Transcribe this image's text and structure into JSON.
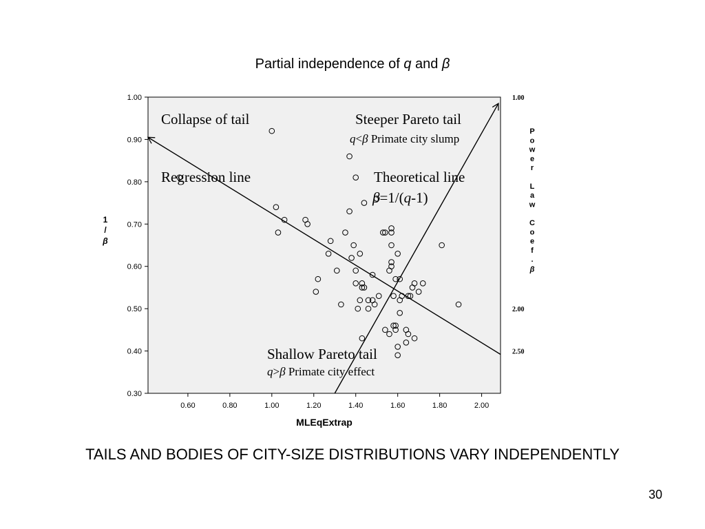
{
  "slide": {
    "title_prefix": "Partial independence of ",
    "title_q": "q",
    "title_and": " and ",
    "title_beta": "β",
    "caption": "TAILS AND BODIES OF CITY-SIZE DISTRIBUTIONS VARY INDEPENDENTLY",
    "page_number": "30"
  },
  "annotations": {
    "collapse_of_tail": "Collapse of tail",
    "regression_line": "Regression line",
    "steeper_pareto_tail": "Steeper Pareto tail",
    "steeper_sub_q": "q",
    "steeper_sub_lt": "<",
    "steeper_sub_beta": "β",
    "steeper_sub_text": " Primate city slump",
    "theoretical_line": "Theoretical line",
    "theoretical_eq_beta": "β",
    "theoretical_eq_mid": "=1/(",
    "theoretical_eq_q": "q",
    "theoretical_eq_end": "-1)",
    "shallow_pareto_tail": "Shallow Pareto tail",
    "shallow_sub_q": "q",
    "shallow_sub_gt": ">",
    "shallow_sub_beta": "β",
    "shallow_sub_text": " Primate city effect"
  },
  "right_axis": {
    "label_chars": [
      "P",
      "o",
      "w",
      "e",
      "r",
      "",
      "L",
      "a",
      "w",
      "",
      "C",
      "o",
      "e",
      "f",
      "."
    ],
    "label_beta": "β",
    "ticks": [
      {
        "label": "1.00",
        "y_value": 1.0
      },
      {
        "label": "2.00",
        "y_value": 0.5
      },
      {
        "label": "2.50",
        "y_value": 0.4
      }
    ]
  },
  "chart_data": {
    "type": "scatter",
    "xlabel": "MLEqExtrap",
    "ylabel_lines": [
      "1",
      "/",
      "β"
    ],
    "xlim": [
      0.41,
      2.09
    ],
    "ylim": [
      0.3,
      1.0
    ],
    "xticks": [
      {
        "value": 0.6,
        "label": "0.60"
      },
      {
        "value": 0.8,
        "label": "0.80"
      },
      {
        "value": 1.0,
        "label": "1.00"
      },
      {
        "value": 1.2,
        "label": "1.20"
      },
      {
        "value": 1.4,
        "label": "1.40"
      },
      {
        "value": 1.6,
        "label": "1.60"
      },
      {
        "value": 1.8,
        "label": "1.80"
      },
      {
        "value": 2.0,
        "label": "2.00"
      }
    ],
    "yticks": [
      {
        "value": 0.3,
        "label": "0.30"
      },
      {
        "value": 0.4,
        "label": "0.40"
      },
      {
        "value": 0.5,
        "label": "0.50"
      },
      {
        "value": 0.6,
        "label": "0.60"
      },
      {
        "value": 0.7,
        "label": "0.70"
      },
      {
        "value": 0.8,
        "label": "0.80"
      },
      {
        "value": 0.9,
        "label": "0.90"
      },
      {
        "value": 1.0,
        "label": "1.00"
      }
    ],
    "grid": false,
    "points": [
      [
        0.56,
        0.81
      ],
      [
        1.0,
        0.92
      ],
      [
        1.02,
        0.74
      ],
      [
        1.03,
        0.68
      ],
      [
        1.06,
        0.71
      ],
      [
        1.16,
        0.71
      ],
      [
        1.17,
        0.7
      ],
      [
        1.21,
        0.54
      ],
      [
        1.22,
        0.57
      ],
      [
        1.27,
        0.63
      ],
      [
        1.28,
        0.66
      ],
      [
        1.31,
        0.59
      ],
      [
        1.33,
        0.51
      ],
      [
        1.35,
        0.68
      ],
      [
        1.37,
        0.86
      ],
      [
        1.37,
        0.73
      ],
      [
        1.38,
        0.62
      ],
      [
        1.39,
        0.65
      ],
      [
        1.4,
        0.81
      ],
      [
        1.4,
        0.59
      ],
      [
        1.4,
        0.56
      ],
      [
        1.41,
        0.5
      ],
      [
        1.42,
        0.63
      ],
      [
        1.42,
        0.52
      ],
      [
        1.43,
        0.56
      ],
      [
        1.43,
        0.55
      ],
      [
        1.43,
        0.43
      ],
      [
        1.44,
        0.75
      ],
      [
        1.44,
        0.55
      ],
      [
        1.46,
        0.52
      ],
      [
        1.46,
        0.5
      ],
      [
        1.48,
        0.58
      ],
      [
        1.48,
        0.52
      ],
      [
        1.49,
        0.51
      ],
      [
        1.5,
        0.76
      ],
      [
        1.51,
        0.53
      ],
      [
        1.53,
        0.68
      ],
      [
        1.54,
        0.68
      ],
      [
        1.54,
        0.45
      ],
      [
        1.56,
        0.59
      ],
      [
        1.56,
        0.44
      ],
      [
        1.57,
        0.69
      ],
      [
        1.57,
        0.68
      ],
      [
        1.57,
        0.65
      ],
      [
        1.57,
        0.61
      ],
      [
        1.57,
        0.6
      ],
      [
        1.58,
        0.53
      ],
      [
        1.58,
        0.46
      ],
      [
        1.59,
        0.57
      ],
      [
        1.59,
        0.46
      ],
      [
        1.59,
        0.45
      ],
      [
        1.6,
        0.63
      ],
      [
        1.6,
        0.41
      ],
      [
        1.6,
        0.39
      ],
      [
        1.61,
        0.57
      ],
      [
        1.61,
        0.52
      ],
      [
        1.61,
        0.49
      ],
      [
        1.62,
        0.53
      ],
      [
        1.64,
        0.45
      ],
      [
        1.64,
        0.42
      ],
      [
        1.65,
        0.53
      ],
      [
        1.65,
        0.44
      ],
      [
        1.66,
        0.53
      ],
      [
        1.67,
        0.55
      ],
      [
        1.68,
        0.56
      ],
      [
        1.68,
        0.43
      ],
      [
        1.7,
        0.54
      ],
      [
        1.72,
        0.56
      ],
      [
        1.81,
        0.65
      ],
      [
        1.89,
        0.51
      ]
    ],
    "lines": [
      {
        "name": "Regression line",
        "from": [
          0.41,
          0.905
        ],
        "to": [
          2.09,
          0.392
        ],
        "arrow_at_start": true
      },
      {
        "name": "Theoretical line",
        "from": [
          1.3,
          0.3
        ],
        "to": [
          2.08,
          0.985
        ],
        "arrow_at_end": true
      }
    ]
  }
}
